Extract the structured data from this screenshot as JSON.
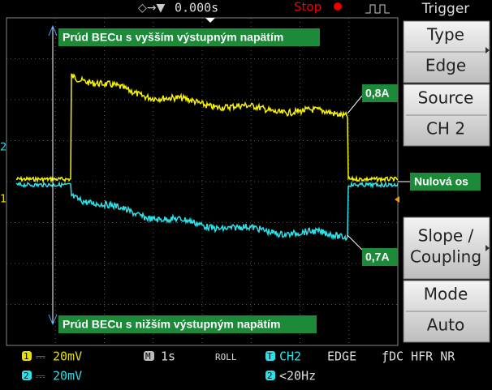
{
  "top": {
    "timebase": "0.000s",
    "status": "Stop"
  },
  "menu": {
    "title": "Trigger",
    "items": [
      {
        "label": [
          "Type"
        ],
        "value": "Edge"
      },
      {
        "label": [
          "Source"
        ],
        "value": "CH 2"
      },
      {
        "label": [
          "Slope /",
          "Coupling"
        ]
      },
      {
        "label": [
          "Mode"
        ],
        "value": "Auto"
      }
    ]
  },
  "markers": {
    "ch2": "2",
    "ch1": "1"
  },
  "annotations": {
    "upper": "Prúd BECu s vyšším výstupným napätím",
    "upper_value": "0,8A",
    "zero": "Nulová os",
    "lower_value": "0,7A",
    "lower": "Prúd BECu s nižším výstupným napätím"
  },
  "status": {
    "ch1_num": "1",
    "ch1": "⎓ 20mV",
    "ch2_num": "2",
    "ch2": "⎓ 20mV",
    "m": "M",
    "timebase": "1s",
    "mode": "ROLL",
    "t": "T",
    "trig_source": "CH2",
    "trig_type": "EDGE",
    "coupling": "ƒDC HFR NR",
    "trig_num": "2",
    "freq": "<20Hz"
  }
}
